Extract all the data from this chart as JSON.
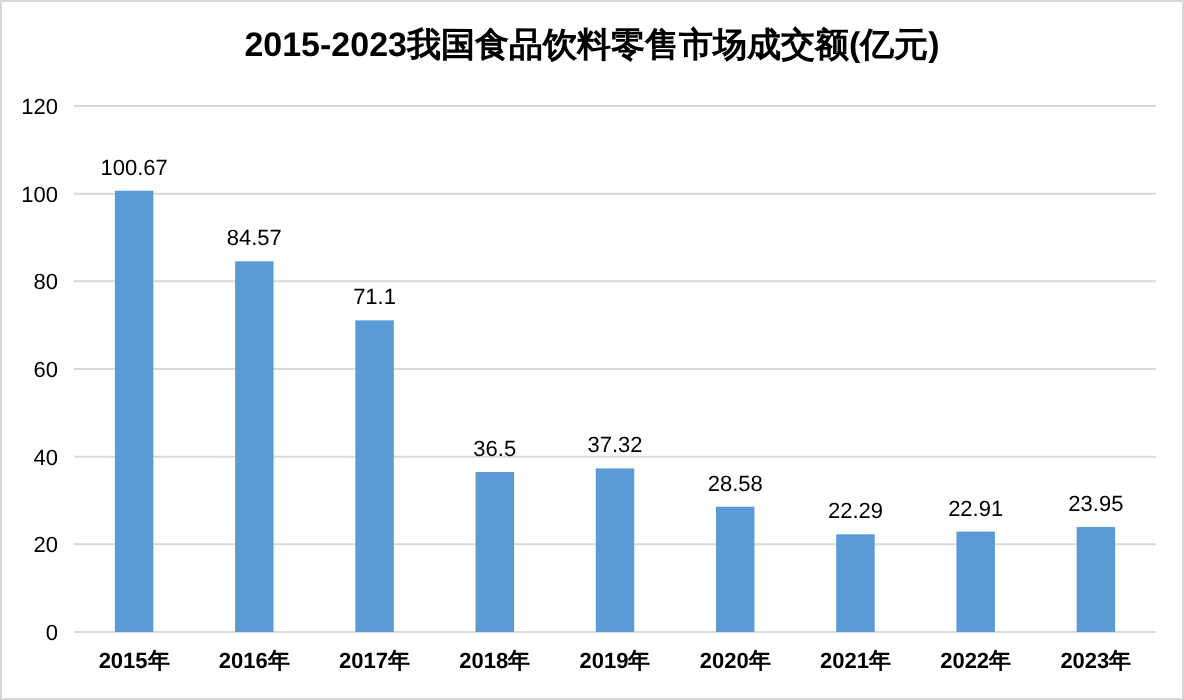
{
  "chart_data": {
    "type": "bar",
    "title": "2015-2023我国食品饮料零售市场成交额(亿元)",
    "categories": [
      "2015年",
      "2016年",
      "2017年",
      "2018年",
      "2019年",
      "2020年",
      "2021年",
      "2022年",
      "2023年"
    ],
    "values": [
      100.67,
      84.57,
      71.1,
      36.5,
      37.32,
      28.58,
      22.29,
      22.91,
      23.95
    ],
    "color": "#5b9bd5",
    "ylim": [
      0,
      120
    ],
    "yticks": [
      0,
      20,
      40,
      60,
      80,
      100,
      120
    ],
    "grid": "y",
    "data_labels": true
  }
}
